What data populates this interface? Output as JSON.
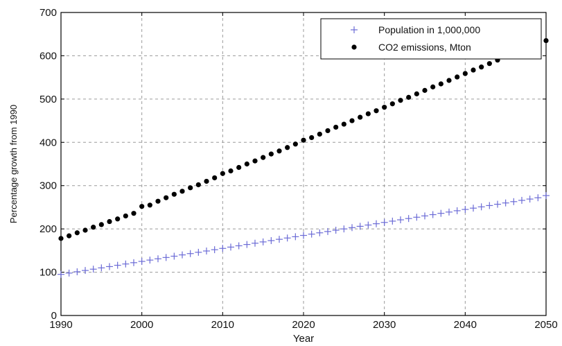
{
  "chart_data": {
    "type": "scatter",
    "title": "",
    "xlabel": "Year",
    "ylabel": "Percentage growth from 1990",
    "xlim": [
      1990,
      2050
    ],
    "ylim": [
      0,
      700
    ],
    "xticks": [
      1990,
      2000,
      2010,
      2020,
      2030,
      2040,
      2050
    ],
    "yticks": [
      0,
      100,
      200,
      300,
      400,
      500,
      600,
      700
    ],
    "xtick_labels": [
      "1990",
      "2000",
      "2010",
      "2020",
      "2030",
      "2040",
      "2050"
    ],
    "ytick_labels": [
      "0",
      "100",
      "200",
      "300",
      "400",
      "500",
      "600",
      "700"
    ],
    "grid": true,
    "legend_position": "top-right",
    "series": [
      {
        "name": "Population in 1,000,000",
        "marker": "plus",
        "color": "#6b6bd6",
        "x": [
          1990,
          1991,
          1992,
          1993,
          1994,
          1995,
          1996,
          1997,
          1998,
          1999,
          2000,
          2001,
          2002,
          2003,
          2004,
          2005,
          2006,
          2007,
          2008,
          2009,
          2010,
          2011,
          2012,
          2013,
          2014,
          2015,
          2016,
          2017,
          2018,
          2019,
          2020,
          2021,
          2022,
          2023,
          2024,
          2025,
          2026,
          2027,
          2028,
          2029,
          2030,
          2031,
          2032,
          2033,
          2034,
          2035,
          2036,
          2037,
          2038,
          2039,
          2040,
          2041,
          2042,
          2043,
          2044,
          2045,
          2046,
          2047,
          2048,
          2049,
          2050
        ],
        "y": [
          95,
          98,
          101,
          104,
          107,
          110,
          113,
          116,
          119,
          122,
          125,
          128,
          131,
          134,
          137,
          140,
          143,
          146,
          149,
          152,
          155,
          158,
          161,
          164,
          167,
          170,
          173,
          176,
          179,
          182,
          185,
          188,
          191,
          194,
          197,
          200,
          203,
          206,
          209,
          212,
          215,
          218,
          221,
          224,
          227,
          230,
          233,
          236,
          239,
          242,
          245,
          248,
          251,
          254,
          257,
          260,
          263,
          266,
          269,
          272,
          277
        ]
      },
      {
        "name": "CO2 emissions, Mton",
        "marker": "dot",
        "color": "#000000",
        "x": [
          1990,
          1991,
          1992,
          1993,
          1994,
          1995,
          1996,
          1997,
          1998,
          1999,
          2000,
          2001,
          2002,
          2003,
          2004,
          2005,
          2006,
          2007,
          2008,
          2009,
          2010,
          2011,
          2012,
          2013,
          2014,
          2015,
          2016,
          2017,
          2018,
          2019,
          2020,
          2021,
          2022,
          2023,
          2024,
          2025,
          2026,
          2027,
          2028,
          2029,
          2030,
          2031,
          2032,
          2033,
          2034,
          2035,
          2036,
          2037,
          2038,
          2039,
          2040,
          2041,
          2042,
          2043,
          2044,
          2045,
          2046,
          2047,
          2048,
          2049,
          2050
        ],
        "y": [
          178,
          184,
          191,
          197,
          204,
          210,
          217,
          223,
          230,
          236,
          252,
          255,
          264,
          272,
          280,
          287,
          295,
          302,
          310,
          318,
          328,
          334,
          342,
          350,
          357,
          365,
          373,
          380,
          388,
          396,
          405,
          411,
          419,
          427,
          435,
          442,
          450,
          458,
          466,
          473,
          481,
          489,
          497,
          504,
          512,
          520,
          528,
          535,
          543,
          551,
          559,
          567,
          574,
          582,
          590,
          598,
          605,
          613,
          621,
          628,
          635
        ]
      }
    ]
  }
}
